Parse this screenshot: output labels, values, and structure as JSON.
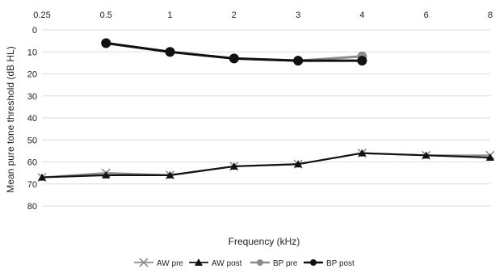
{
  "chart_data": {
    "type": "line",
    "xlabel": "Frequency (kHz)",
    "ylabel": "Mean pure tone threshold (dB HL)",
    "x_tick_labels": [
      "0.25",
      "0.5",
      "1",
      "2",
      "3",
      "4",
      "6",
      "8"
    ],
    "y_tick_labels": [
      "0",
      "10",
      "20",
      "30",
      "40",
      "50",
      "60",
      "70",
      "80"
    ],
    "ylim": [
      0,
      80
    ],
    "y_inverted": true,
    "x_axis_position": "top",
    "grid": true,
    "legend_position": "bottom",
    "series": [
      {
        "name": "AW pre",
        "color": "#8c8c8c",
        "marker": "x",
        "values": [
          67,
          65,
          66,
          62,
          61,
          56,
          57,
          57
        ]
      },
      {
        "name": "AW post",
        "color": "#111111",
        "marker": "triangle",
        "values": [
          67,
          66,
          66,
          62,
          61,
          56,
          57,
          58
        ]
      },
      {
        "name": "BP pre",
        "color": "#8c8c8c",
        "marker": "circle",
        "values": [
          null,
          6,
          10,
          13,
          14,
          12,
          null,
          null
        ]
      },
      {
        "name": "BP post",
        "color": "#111111",
        "marker": "circle",
        "values": [
          null,
          6,
          10,
          13,
          14,
          14,
          null,
          null
        ]
      }
    ]
  }
}
